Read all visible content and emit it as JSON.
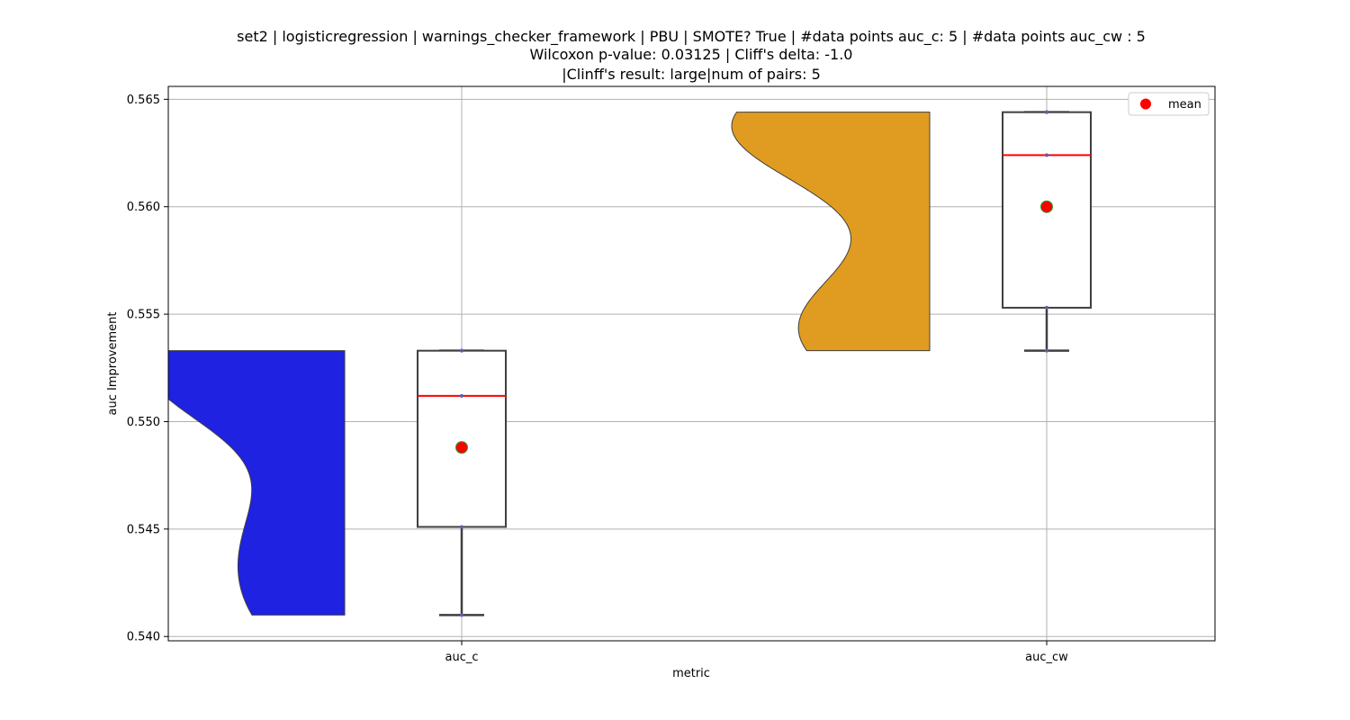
{
  "chart_data": {
    "type": "violin+box",
    "title_lines": [
      "set2 | logisticregression | warnings_checker_framework | PBU | SMOTE? True | #data points auc_c: 5 | #data points auc_cw : 5",
      "Wilcoxon p-value: 0.03125 | Cliff's delta: -1.0",
      "|Clinff's result: large|num of pairs: 5"
    ],
    "xlabel": "metric",
    "ylabel": "auc Improvement",
    "ylim": [
      0.5398,
      0.5656
    ],
    "yticks": [
      0.54,
      0.545,
      0.55,
      0.555,
      0.56,
      0.565
    ],
    "ytick_labels": [
      "0.540",
      "0.545",
      "0.550",
      "0.555",
      "0.560",
      "0.565"
    ],
    "categories": [
      "auc_c",
      "auc_cw"
    ],
    "grid": true,
    "legend": {
      "placement": "top-right",
      "entries": [
        {
          "label": "mean",
          "marker": "circle",
          "color": "#ff0000"
        }
      ]
    },
    "series": [
      {
        "name": "auc_c",
        "violin_color": "#1f22e0",
        "points": [
          0.541,
          0.5451,
          0.5512,
          0.5533,
          0.5533
        ],
        "box": {
          "min": 0.541,
          "q1": 0.5451,
          "median": 0.5512,
          "q3": 0.5533,
          "max": 0.5533
        },
        "mean": 0.5488
      },
      {
        "name": "auc_cw",
        "violin_color": "#e09c21",
        "points": [
          0.5533,
          0.5553,
          0.5624,
          0.5644,
          0.5644
        ],
        "box": {
          "min": 0.5533,
          "q1": 0.5553,
          "median": 0.5624,
          "q3": 0.5644,
          "max": 0.5644
        },
        "mean": 0.56
      }
    ],
    "colors": {
      "median_line": "#ff0000",
      "mean_marker": "#ff0000",
      "mean_edge": "#2ca02c",
      "box_edge": "#3f3f3f",
      "grid": "#b0b0b0"
    }
  }
}
